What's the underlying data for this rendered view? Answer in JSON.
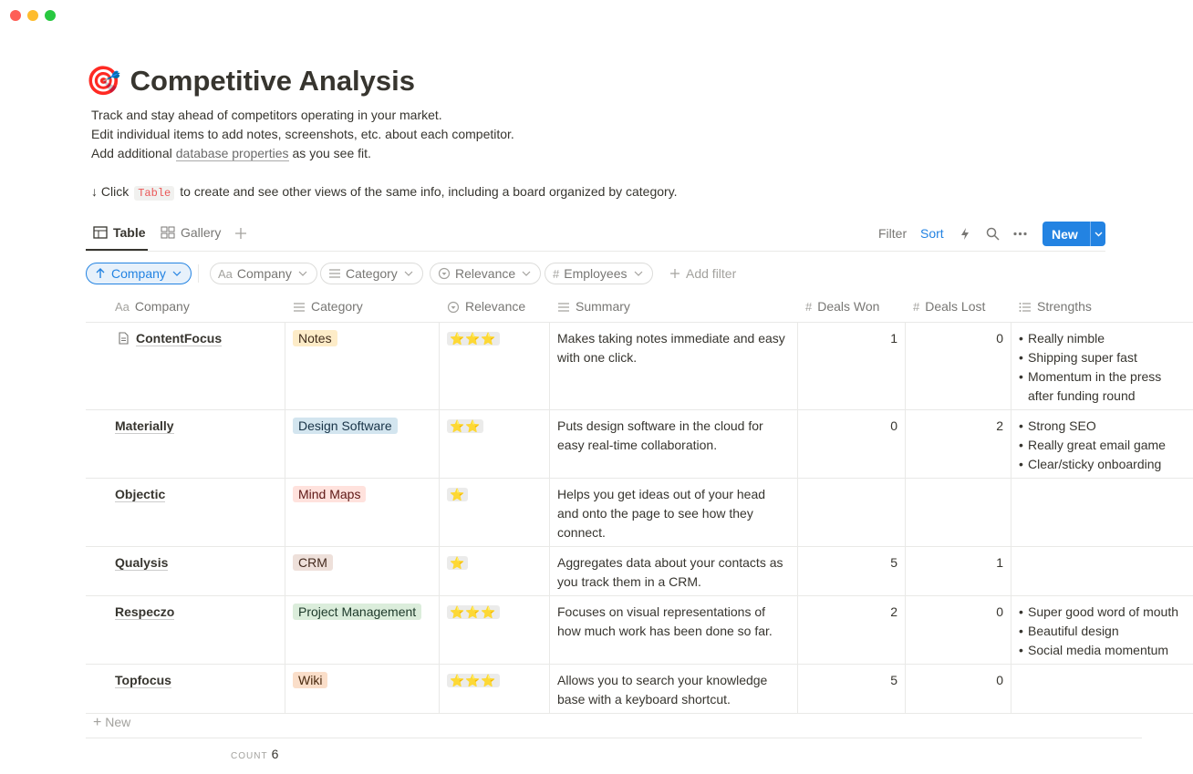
{
  "header": {
    "icon": "🎯",
    "title": "Competitive Analysis"
  },
  "description": {
    "line1": "Track and stay ahead of competitors operating in your market.",
    "line2": "Edit individual items to add notes, screenshots, etc. about each competitor.",
    "line3": {
      "before": "Add additional",
      "link": "database properties",
      "after": "as you see fit."
    },
    "line4": {
      "before": "↓ Click",
      "code": "Table",
      "after": "to create and see other views of the same info, including a board organized by category."
    }
  },
  "views": [
    "Table",
    "Gallery"
  ],
  "toolbar": {
    "filter": "Filter",
    "sort": "Sort",
    "new": "New"
  },
  "filters": {
    "sort": "Company",
    "pills": [
      {
        "icon": "Aa",
        "label": "Company"
      },
      {
        "label": "Category"
      },
      {
        "label": "Relevance"
      },
      {
        "icon": "#",
        "label": "Employees"
      }
    ],
    "add": "Add filter"
  },
  "table": {
    "columns": [
      {
        "icon": "Aa",
        "label": "Company"
      },
      {
        "label": "Category"
      },
      {
        "label": "Relevance"
      },
      {
        "label": "Summary"
      },
      {
        "icon": "#",
        "label": "Deals Won"
      },
      {
        "icon": "#",
        "label": "Deals Lost"
      },
      {
        "label": "Strengths"
      }
    ],
    "rows": [
      {
        "company": "ContentFocus",
        "category": "Notes",
        "relevance": "⭐⭐⭐",
        "summary": "Makes taking notes immediate and easy with one click.",
        "deals_won": 1,
        "deals_lost": 0,
        "strengths": [
          "Really nimble",
          "Shipping super fast",
          "Momentum in the press after funding round"
        ]
      },
      {
        "company": "Materially",
        "category": "Design Software",
        "relevance": "⭐⭐",
        "summary": "Puts design software in the cloud for easy real-time collaboration.",
        "deals_won": 0,
        "deals_lost": 2,
        "strengths": [
          "Strong SEO",
          "Really great email game",
          "Clear/sticky onboarding"
        ]
      },
      {
        "company": "Objectic",
        "category": "Mind Maps",
        "relevance": "⭐",
        "summary": "Helps you get ideas out of your head and onto the page to see how they connect.",
        "deals_won": null,
        "deals_lost": null,
        "strengths": []
      },
      {
        "company": "Qualysis",
        "category": "CRM",
        "relevance": "⭐",
        "summary": "Aggregates data about your contacts as you track them in a CRM.",
        "deals_won": 5,
        "deals_lost": 1,
        "strengths": []
      },
      {
        "company": "Respeczo",
        "category": "Project Management",
        "relevance": "⭐⭐⭐",
        "summary": "Focuses on visual representations of how much work has been done so far.",
        "deals_won": 2,
        "deals_lost": 0,
        "strengths": [
          "Super good word of mouth",
          "Beautiful design",
          "Social media momentum"
        ]
      },
      {
        "company": "Topfocus",
        "category": "Wiki",
        "relevance": "⭐⭐⭐",
        "summary": "Allows you to search your knowledge base with a keyboard shortcut.",
        "deals_won": 5,
        "deals_lost": 0,
        "strengths": []
      }
    ],
    "new_row": "New",
    "count_label": "COUNT",
    "count": 6
  }
}
